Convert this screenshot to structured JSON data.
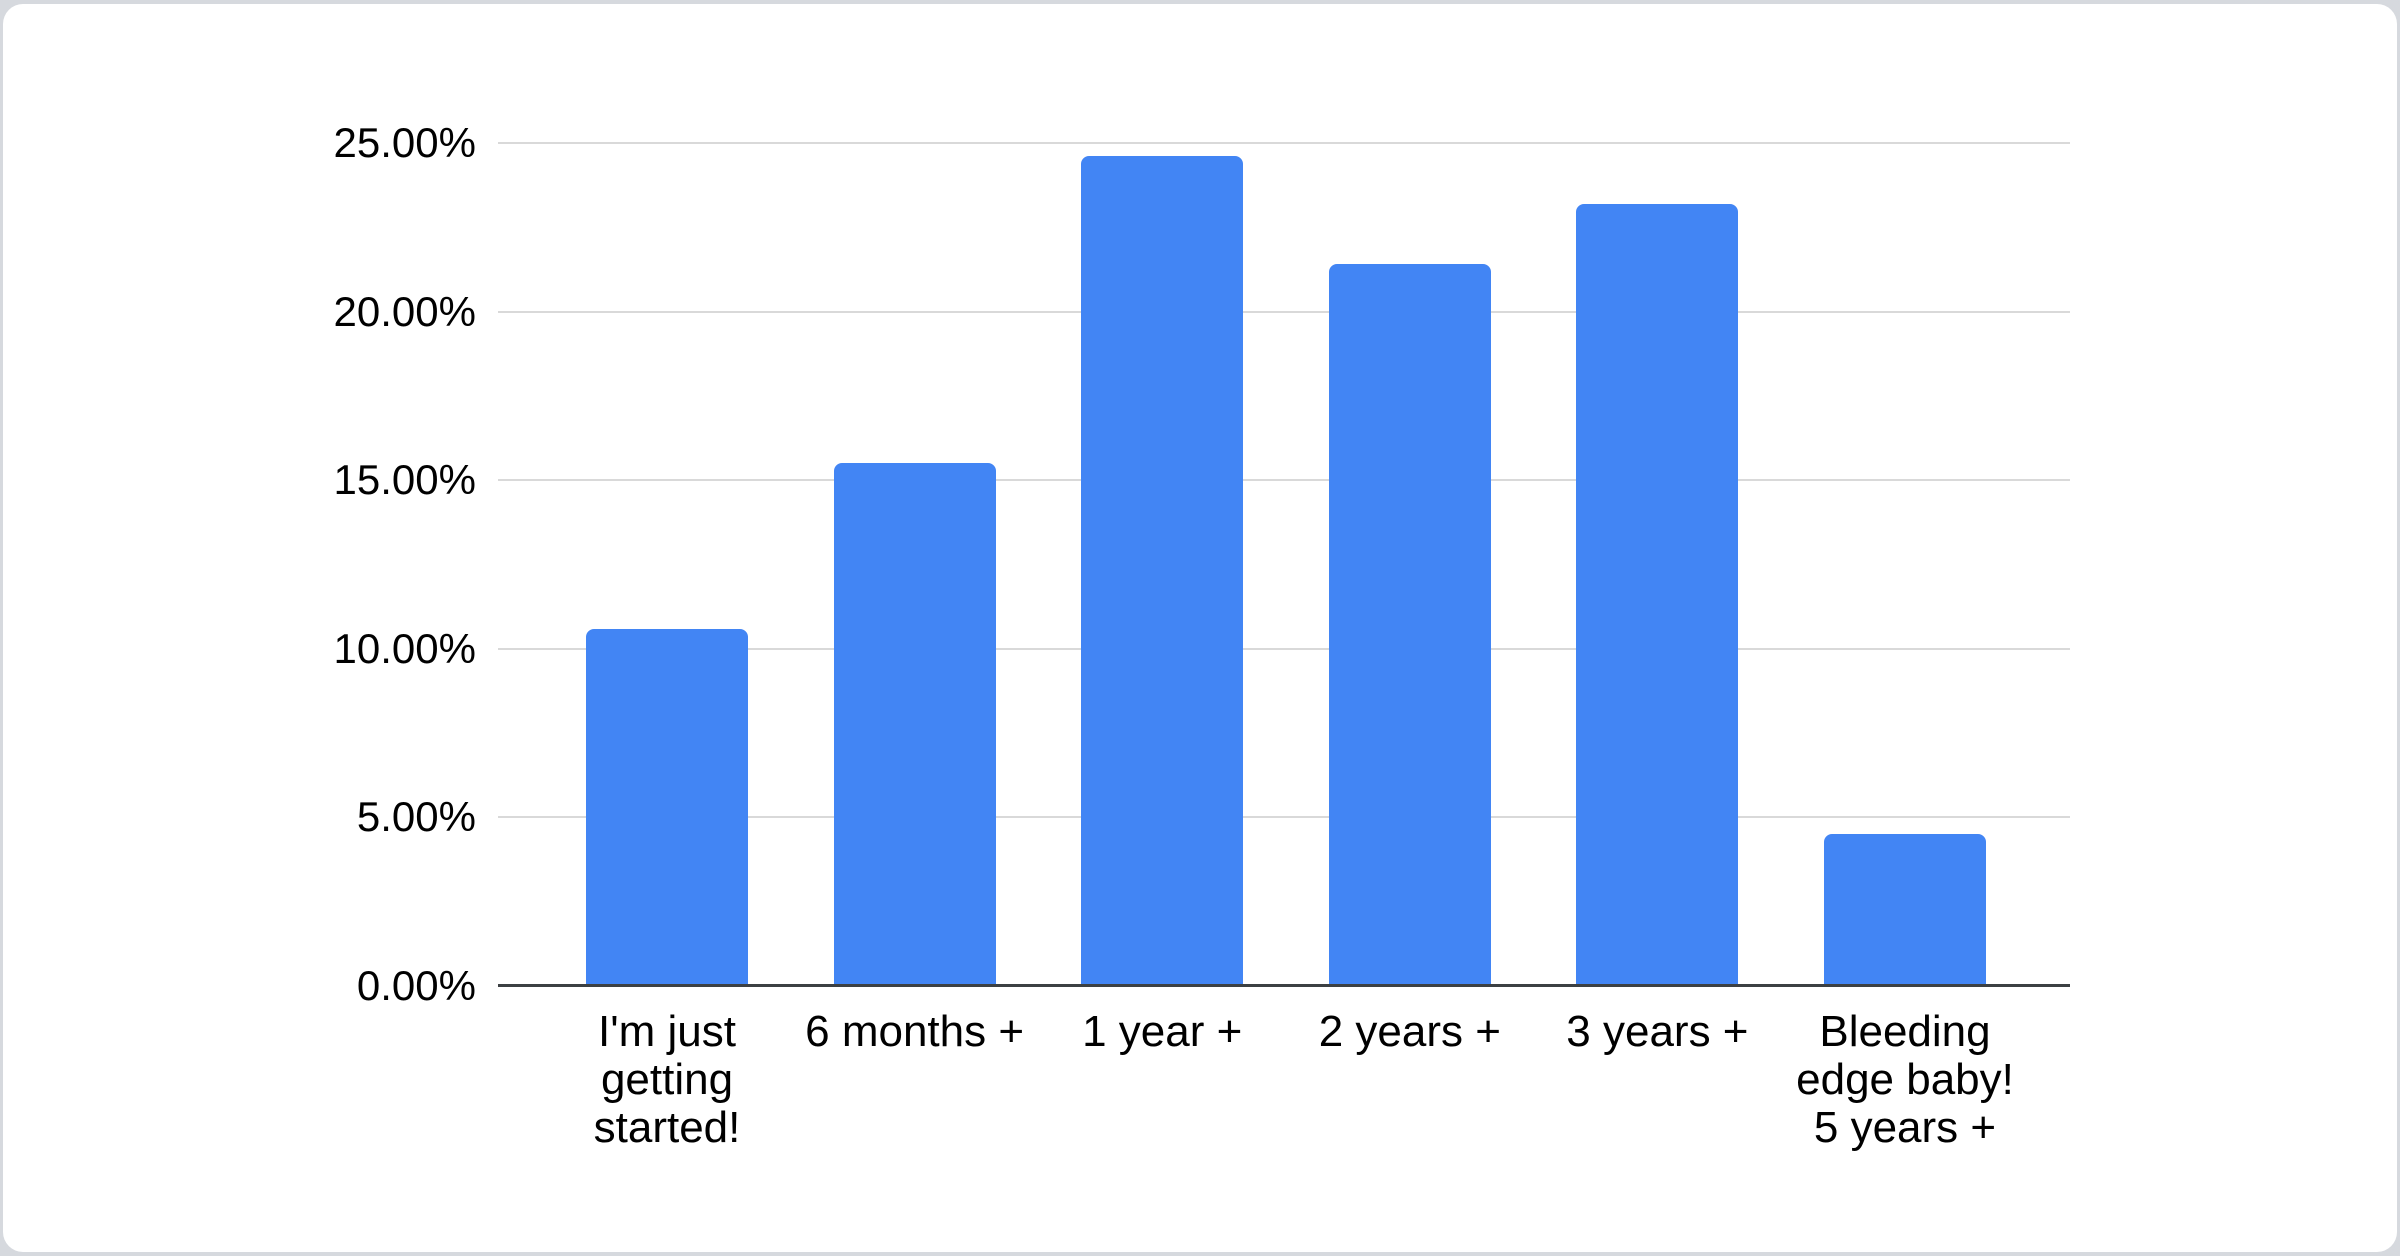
{
  "chart_data": {
    "type": "bar",
    "title": "",
    "xlabel": "",
    "ylabel": "",
    "legend": "none",
    "grid": "horizontal",
    "ylim": [
      0,
      25
    ],
    "categories": [
      "I'm just getting started!",
      "6 months +",
      "1 year +",
      "2 years +",
      "3 years +",
      "Bleeding edge baby! 5 years +"
    ],
    "category_display_lines": [
      [
        "I'm just",
        "getting",
        "started!"
      ],
      [
        "6 months +"
      ],
      [
        "1 year +"
      ],
      [
        "2 years +"
      ],
      [
        "3 years +"
      ],
      [
        "Bleeding",
        "edge baby!",
        "5 years +"
      ]
    ],
    "values": [
      10.6,
      15.5,
      24.6,
      21.4,
      23.2,
      4.5
    ],
    "value_unit": "%",
    "y_ticks": [
      {
        "value": 0,
        "label": "0.00%"
      },
      {
        "value": 5,
        "label": "5.00%"
      },
      {
        "value": 10,
        "label": "10.00%"
      },
      {
        "value": 15,
        "label": "15.00%"
      },
      {
        "value": 20,
        "label": "20.00%"
      },
      {
        "value": 25,
        "label": "25.00%"
      }
    ],
    "colors": {
      "bar": "#4285f4",
      "axis_line": "#3c4043",
      "gridline": "#d9d9d9",
      "label_text": "#000000",
      "card_background": "#ffffff",
      "page_background": "#d6d9de"
    }
  }
}
